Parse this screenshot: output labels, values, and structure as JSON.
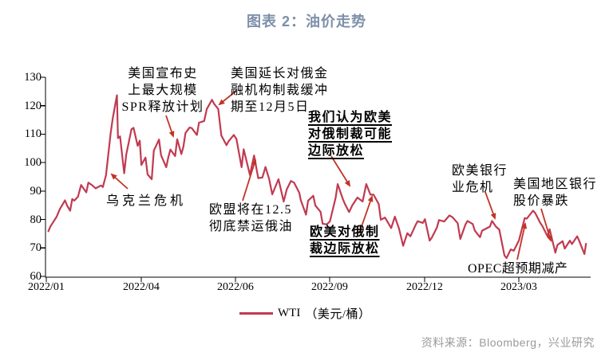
{
  "title": "图表 2：油价走势",
  "source": "资料来源：Bloomberg，兴业研究",
  "legend": {
    "series_label": "WTI",
    "unit_label": "（美元/桶）"
  },
  "colors": {
    "line": "#C13A50",
    "arrow": "#C23326",
    "title": "#7D8FA9",
    "source": "#9A9A9A",
    "axis": "#000000"
  },
  "annotations": [
    {
      "id": "spr",
      "lines": [
        "美国宣布史",
        "上最大规模",
        "SPR释放计划"
      ],
      "emphasis": false
    },
    {
      "id": "extend",
      "lines": [
        "美国延长对俄金",
        "融机构制裁缓冲",
        "期至12月5日"
      ],
      "emphasis": false
    },
    {
      "id": "ukraine",
      "lines": [
        "乌克兰危机"
      ],
      "emphasis": false
    },
    {
      "id": "eu-ban",
      "lines": [
        "欧盟将在12.5",
        "彻底禁运俄油"
      ],
      "emphasis": false
    },
    {
      "id": "we-think",
      "lines": [
        "我们认为欧美",
        "对俄制裁可能",
        "边际放松"
      ],
      "emphasis": true
    },
    {
      "id": "relax",
      "lines": [
        "欧美对俄制",
        "裁边际放松"
      ],
      "emphasis": true
    },
    {
      "id": "bank-crisis",
      "lines": [
        "欧美银行",
        "业危机"
      ],
      "emphasis": false
    },
    {
      "id": "us-bank",
      "lines": [
        "美国地区银行",
        "股价暴跌"
      ],
      "emphasis": false
    },
    {
      "id": "opec",
      "lines": [
        "OPEC超预期减产"
      ],
      "emphasis": false
    }
  ],
  "chart_data": {
    "type": "line",
    "title": "图表 2：油价走势",
    "series": [
      {
        "name": "WTI（美元/桶）"
      }
    ],
    "ylabel": "美元/桶",
    "ylim": [
      60,
      130
    ],
    "y_ticks": [
      130,
      120,
      110,
      100,
      90,
      80,
      70,
      60
    ],
    "x_ticks": [
      "2022/01",
      "2022/04",
      "2022/06",
      "2022/09",
      "2022/12",
      "2023/03"
    ],
    "grid": false,
    "legend_position": "bottom",
    "dates": [
      "2022-01-03",
      "2022-01-05",
      "2022-01-07",
      "2022-01-11",
      "2022-01-14",
      "2022-01-19",
      "2022-01-21",
      "2022-01-24",
      "2022-01-26",
      "2022-01-28",
      "2022-02-01",
      "2022-02-04",
      "2022-02-09",
      "2022-02-11",
      "2022-02-15",
      "2022-02-18",
      "2022-02-23",
      "2022-02-25",
      "2022-02-28",
      "2022-03-02",
      "2022-03-04",
      "2022-03-08",
      "2022-03-09",
      "2022-03-11",
      "2022-03-15",
      "2022-03-17",
      "2022-03-22",
      "2022-03-24",
      "2022-03-28",
      "2022-03-30",
      "2022-04-01",
      "2022-04-05",
      "2022-04-07",
      "2022-04-11",
      "2022-04-13",
      "2022-04-18",
      "2022-04-20",
      "2022-04-25",
      "2022-04-27",
      "2022-04-29",
      "2022-05-03",
      "2022-05-05",
      "2022-05-09",
      "2022-05-11",
      "2022-05-13",
      "2022-05-17",
      "2022-05-19",
      "2022-05-24",
      "2022-05-26",
      "2022-05-31",
      "2022-06-03",
      "2022-06-08",
      "2022-06-10",
      "2022-06-14",
      "2022-06-17",
      "2022-06-22",
      "2022-06-24",
      "2022-06-29",
      "2022-07-01",
      "2022-07-06",
      "2022-07-08",
      "2022-07-14",
      "2022-07-18",
      "2022-07-22",
      "2022-07-26",
      "2022-07-29",
      "2022-08-02",
      "2022-08-05",
      "2022-08-11",
      "2022-08-16",
      "2022-08-19",
      "2022-08-23",
      "2022-08-26",
      "2022-08-31",
      "2022-09-02",
      "2022-09-07",
      "2022-09-09",
      "2022-09-14",
      "2022-09-16",
      "2022-09-21",
      "2022-09-23",
      "2022-09-27",
      "2022-09-30",
      "2022-10-05",
      "2022-10-07",
      "2022-10-12",
      "2022-10-14",
      "2022-10-18",
      "2022-10-21",
      "2022-10-26",
      "2022-10-31",
      "2022-11-04",
      "2022-11-08",
      "2022-11-11",
      "2022-11-16",
      "2022-11-18",
      "2022-11-22",
      "2022-11-28",
      "2022-12-01",
      "2022-12-05",
      "2022-12-09",
      "2022-12-13",
      "2022-12-16",
      "2022-12-21",
      "2022-12-23",
      "2022-12-28",
      "2022-12-30",
      "2023-01-04",
      "2023-01-06",
      "2023-01-11",
      "2023-01-13",
      "2023-01-18",
      "2023-01-23",
      "2023-01-26",
      "2023-01-31",
      "2023-02-03",
      "2023-02-08",
      "2023-02-10",
      "2023-02-15",
      "2023-02-17",
      "2023-02-22",
      "2023-02-24",
      "2023-03-01",
      "2023-03-03",
      "2023-03-07",
      "2023-03-10",
      "2023-03-15",
      "2023-03-17",
      "2023-03-21",
      "2023-03-24",
      "2023-03-29",
      "2023-03-31",
      "2023-04-04",
      "2023-04-06",
      "2023-04-12",
      "2023-04-14",
      "2023-04-19",
      "2023-04-21",
      "2023-04-26",
      "2023-04-28",
      "2023-05-03",
      "2023-05-05",
      "2023-05-10",
      "2023-05-12",
      "2023-05-17",
      "2023-05-19",
      "2023-05-24",
      "2023-05-26",
      "2023-05-31",
      "2023-06-02"
    ],
    "values": [
      76.1,
      77.8,
      78.9,
      81.2,
      83.8,
      86.9,
      85.1,
      83.3,
      87.4,
      86.8,
      88.2,
      92.3,
      89.7,
      93.1,
      92.1,
      91.1,
      92.1,
      91.6,
      95.7,
      110.6,
      115.7,
      123.7,
      108.7,
      109.3,
      96.4,
      103.0,
      111.8,
      112.3,
      106.0,
      107.8,
      99.3,
      101.9,
      96.0,
      94.3,
      104.3,
      108.2,
      102.7,
      98.5,
      102.0,
      104.7,
      102.4,
      108.3,
      103.1,
      105.7,
      110.5,
      112.4,
      112.2,
      109.8,
      114.1,
      114.7,
      118.9,
      122.1,
      120.7,
      118.9,
      109.6,
      106.2,
      107.6,
      109.8,
      108.4,
      98.5,
      104.8,
      95.8,
      102.6,
      94.7,
      94.9,
      98.6,
      94.4,
      89.0,
      94.3,
      86.5,
      90.8,
      93.7,
      93.1,
      89.6,
      86.9,
      81.9,
      86.8,
      88.5,
      85.1,
      82.9,
      78.7,
      78.5,
      79.5,
      87.8,
      92.6,
      87.3,
      85.6,
      82.8,
      85.1,
      87.9,
      86.5,
      92.6,
      88.9,
      88.9,
      85.6,
      80.1,
      80.9,
      77.2,
      81.2,
      77.0,
      71.0,
      75.4,
      74.3,
      78.3,
      79.6,
      79.0,
      80.3,
      72.8,
      73.8,
      77.4,
      80.0,
      79.5,
      81.6,
      81.0,
      78.9,
      73.4,
      78.5,
      79.7,
      78.6,
      76.3,
      74.0,
      76.3,
      77.7,
      79.7,
      77.6,
      76.7,
      67.6,
      66.7,
      69.7,
      69.3,
      72.9,
      75.7,
      80.7,
      80.5,
      83.3,
      82.5,
      79.0,
      77.9,
      74.3,
      76.8,
      68.6,
      71.3,
      72.6,
      70.0,
      72.8,
      71.6,
      74.3,
      72.7,
      68.1,
      71.7
    ]
  }
}
